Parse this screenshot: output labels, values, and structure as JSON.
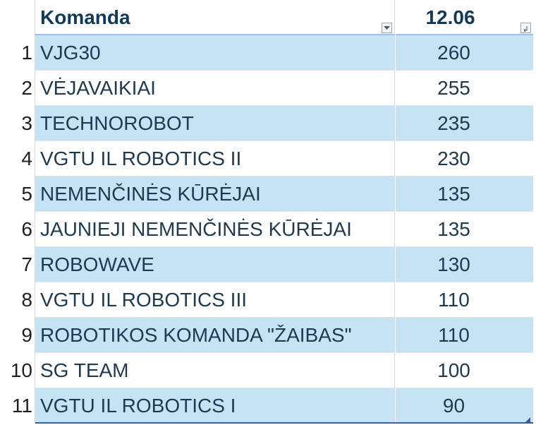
{
  "header": {
    "team_label": "Komanda",
    "score_label": "12.06"
  },
  "rows": [
    {
      "num": "1",
      "team": "VJG30",
      "score": "260"
    },
    {
      "num": "2",
      "team": "VĖJAVAIKIAI",
      "score": "255"
    },
    {
      "num": "3",
      "team": "TECHNOROBOT",
      "score": "235"
    },
    {
      "num": "4",
      "team": "VGTU IL ROBOTICS II",
      "score": "230"
    },
    {
      "num": "5",
      "team": "NEMENČINĖS KŪRĖJAI",
      "score": "135"
    },
    {
      "num": "6",
      "team": "JAUNIEJI NEMENČINĖS KŪRĖJAI",
      "score": "135"
    },
    {
      "num": "7",
      "team": "ROBOWAVE",
      "score": "130"
    },
    {
      "num": "8",
      "team": "VGTU IL ROBOTICS III",
      "score": "110"
    },
    {
      "num": "9",
      "team": "ROBOTIKOS KOMANDA \"ŽAIBAS\"",
      "score": "110"
    },
    {
      "num": "10",
      "team": "SG TEAM",
      "score": "100"
    },
    {
      "num": "11",
      "team": "VGTU IL ROBOTICS I",
      "score": "90"
    }
  ],
  "colors": {
    "band": "#c6e3f5",
    "header_text": "#123a55",
    "table_border": "#2f5fa0"
  },
  "icons": {
    "team_filter": "filter-dropdown-icon",
    "score_filter": "sort-descending-filter-icon"
  }
}
